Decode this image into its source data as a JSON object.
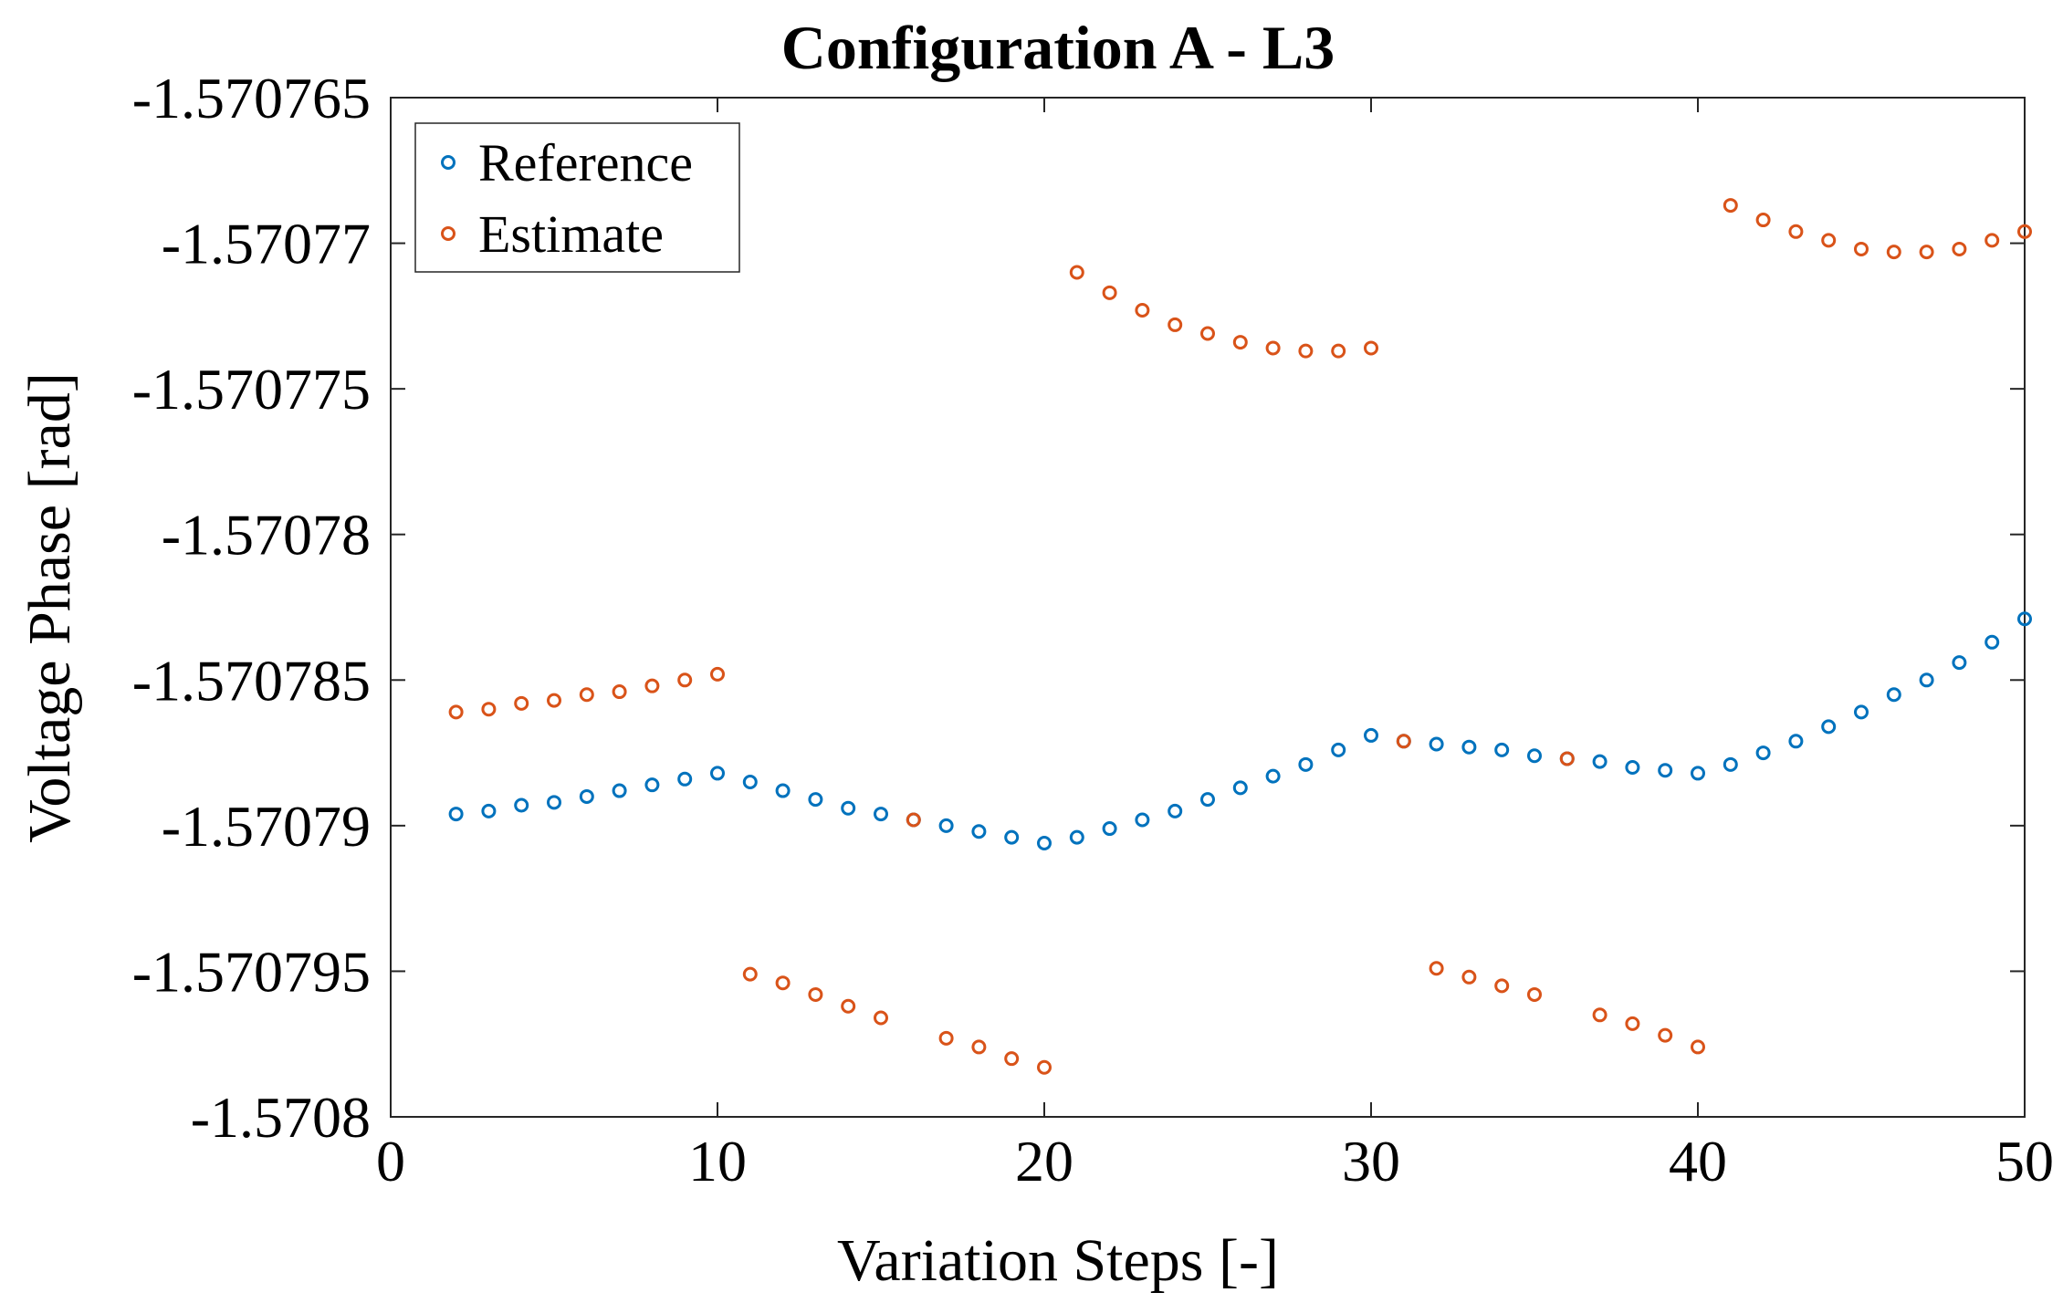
{
  "chart_data": {
    "type": "scatter",
    "title": "Configuration A - L3",
    "xlabel": "Variation Steps [-]",
    "ylabel": "Voltage Phase [rad]",
    "xlim": [
      0,
      50
    ],
    "ylim": [
      -1.5708,
      -1.570765
    ],
    "x_ticks": [
      0,
      10,
      20,
      30,
      40,
      50
    ],
    "x_tick_labels": [
      "0",
      "10",
      "20",
      "30",
      "40",
      "50"
    ],
    "y_ticks": [
      -1.5708,
      -1.570795,
      -1.57079,
      -1.570785,
      -1.57078,
      -1.570775,
      -1.57077,
      -1.570765
    ],
    "y_tick_labels": [
      "-1.5708",
      "-1.570795",
      "-1.57079",
      "-1.570785",
      "-1.57078",
      "-1.570775",
      "-1.57077",
      "-1.570765"
    ],
    "grid": false,
    "legend_position": "top-left",
    "series": [
      {
        "name": "Reference",
        "color": "#0072BD",
        "marker": "circle",
        "x": [
          2,
          3,
          4,
          5,
          6,
          7,
          8,
          9,
          10,
          11,
          12,
          13,
          14,
          15,
          16,
          17,
          18,
          19,
          20,
          21,
          22,
          23,
          24,
          25,
          26,
          27,
          28,
          29,
          30,
          31,
          32,
          33,
          34,
          35,
          36,
          37,
          38,
          39,
          40,
          41,
          42,
          43,
          44,
          45,
          46,
          47,
          48,
          49,
          50
        ],
        "y": [
          -1.5707896,
          -1.5707895,
          -1.5707893,
          -1.5707892,
          -1.570789,
          -1.5707888,
          -1.5707886,
          -1.5707884,
          -1.5707882,
          -1.5707885,
          -1.5707888,
          -1.5707891,
          -1.5707894,
          -1.5707896,
          -1.5707898,
          -1.57079,
          -1.5707902,
          -1.5707904,
          -1.5707906,
          -1.5707904,
          -1.5707901,
          -1.5707898,
          -1.5707895,
          -1.5707891,
          -1.5707887,
          -1.5707883,
          -1.5707879,
          -1.5707874,
          -1.5707869,
          -1.5707871,
          -1.5707872,
          -1.5707873,
          -1.5707874,
          -1.5707876,
          -1.5707877,
          -1.5707878,
          -1.570788,
          -1.5707881,
          -1.5707882,
          -1.5707879,
          -1.5707875,
          -1.5707871,
          -1.5707866,
          -1.5707861,
          -1.5707855,
          -1.570785,
          -1.5707844,
          -1.5707837,
          -1.5707829
        ]
      },
      {
        "name": "Estimate",
        "color": "#D95319",
        "marker": "circle",
        "x": [
          2,
          3,
          4,
          5,
          6,
          7,
          8,
          9,
          10,
          11,
          12,
          13,
          14,
          15,
          16,
          17,
          18,
          19,
          20,
          21,
          22,
          23,
          24,
          25,
          26,
          27,
          28,
          29,
          30,
          31,
          32,
          33,
          34,
          35,
          36,
          37,
          38,
          39,
          40,
          41,
          42,
          43,
          44,
          45,
          46,
          47,
          48,
          49,
          50
        ],
        "y": [
          -1.5707861,
          -1.570786,
          -1.5707858,
          -1.5707857,
          -1.5707855,
          -1.5707854,
          -1.5707852,
          -1.570785,
          -1.5707848,
          -1.5707951,
          -1.5707954,
          -1.5707958,
          -1.5707962,
          -1.5707966,
          -1.5707898,
          -1.5707973,
          -1.5707976,
          -1.570798,
          -1.5707983,
          -1.570771,
          -1.5707717,
          -1.5707723,
          -1.5707728,
          -1.5707731,
          -1.5707734,
          -1.5707736,
          -1.5707737,
          -1.5707737,
          -1.5707736,
          -1.5707871,
          -1.5707949,
          -1.5707952,
          -1.5707955,
          -1.5707958,
          -1.5707877,
          -1.5707965,
          -1.5707968,
          -1.5707972,
          -1.5707976,
          -1.5707687,
          -1.5707692,
          -1.5707696,
          -1.5707699,
          -1.5707702,
          -1.5707703,
          -1.5707703,
          -1.5707702,
          -1.5707699,
          -1.5707696
        ]
      }
    ]
  }
}
